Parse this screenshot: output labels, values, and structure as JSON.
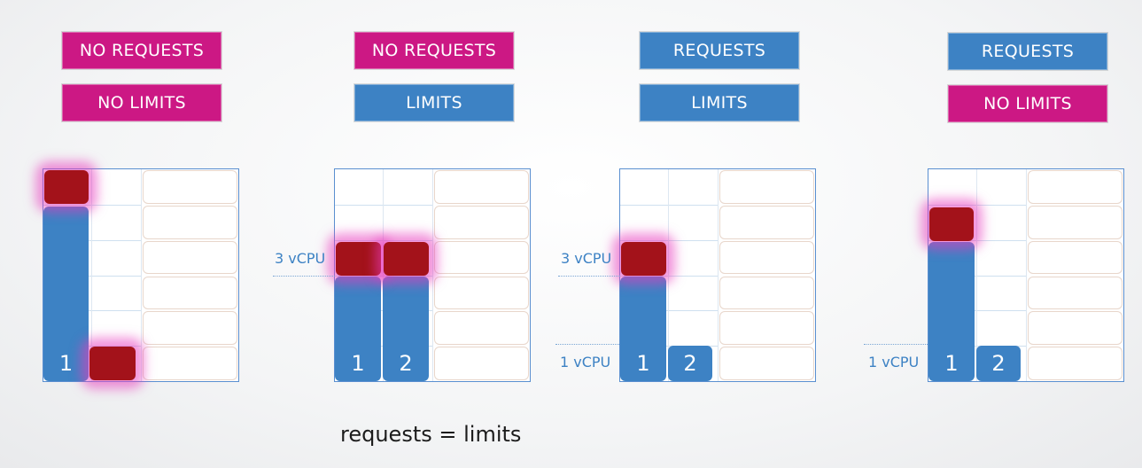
{
  "panels": [
    {
      "request_label": "NO REQUESTS",
      "limit_label": "NO LIMITS"
    },
    {
      "request_label": "NO REQUESTS",
      "limit_label": "LIMITS"
    },
    {
      "request_label": "REQUESTS",
      "limit_label": "LIMITS"
    },
    {
      "request_label": "REQUESTS",
      "limit_label": "NO LIMITS"
    }
  ],
  "core_labels": {
    "one": "1",
    "two": "2"
  },
  "cpu_labels": {
    "three": "3 vCPU",
    "one": "1 vCPU"
  },
  "caption": "requests = limits",
  "colors": {
    "magenta": "#cc1884",
    "blue": "#3d82c4",
    "dark_red": "#a3121a"
  }
}
